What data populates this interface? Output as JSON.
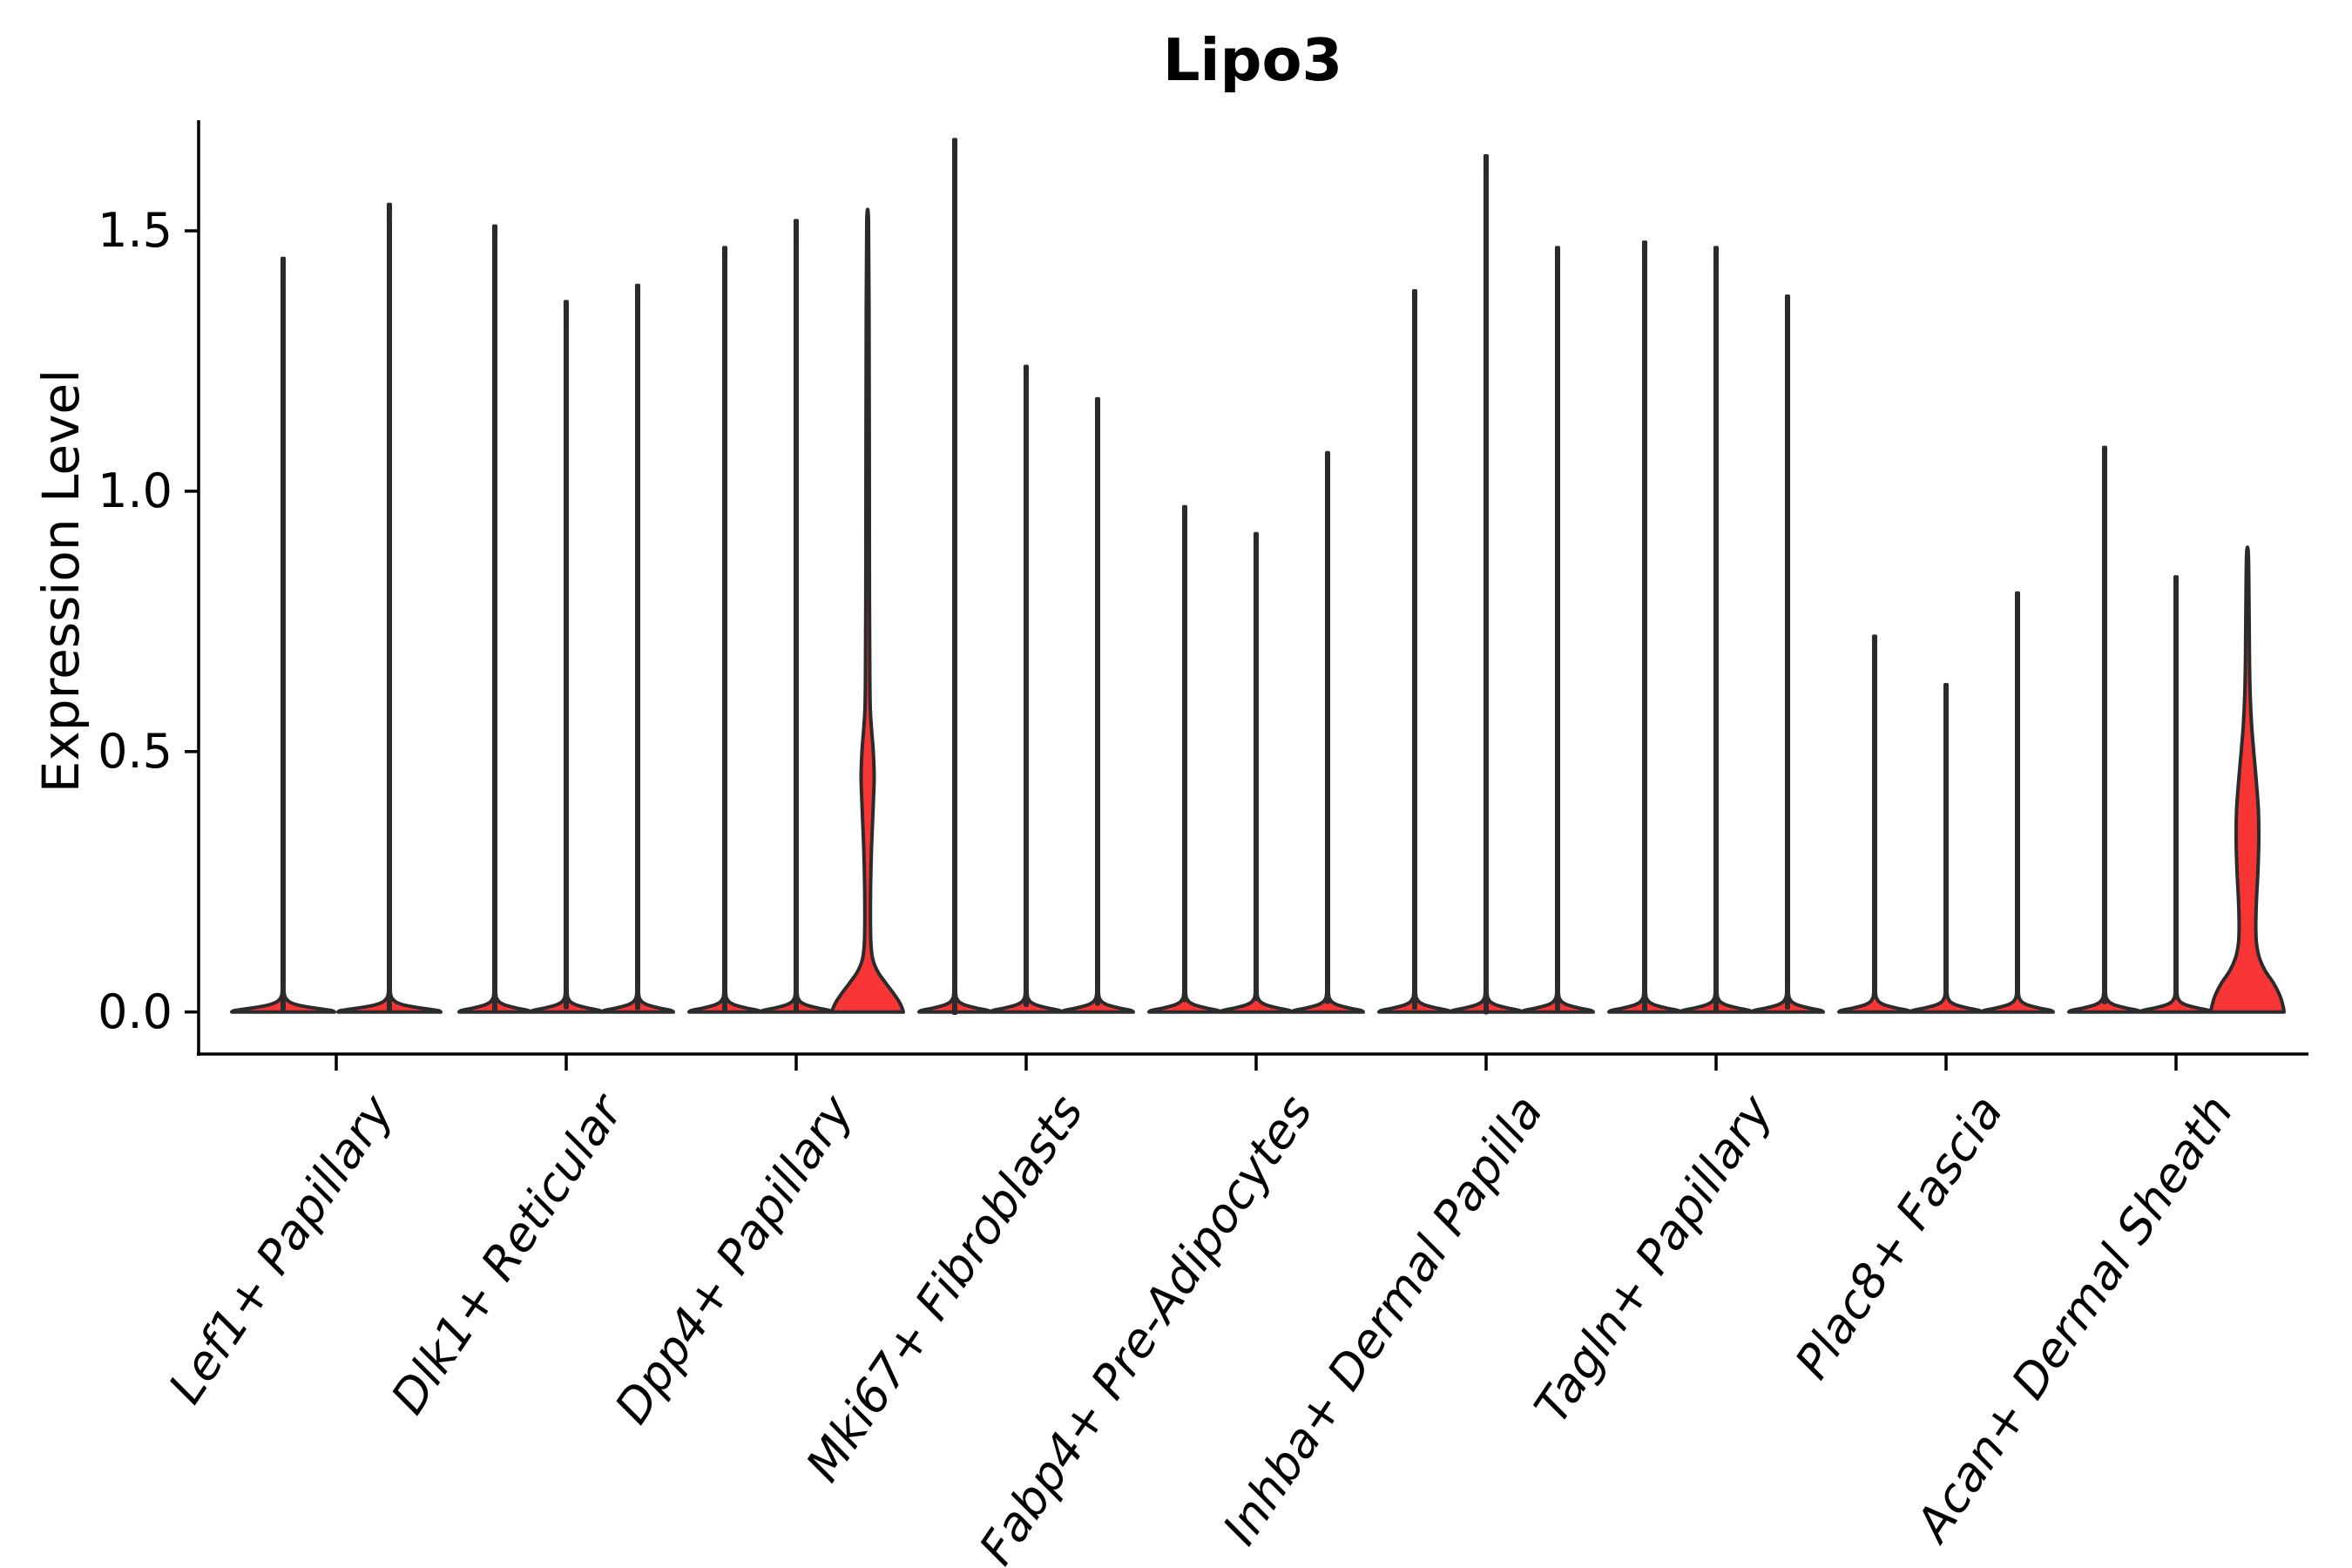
{
  "title": "Lipo3",
  "axes": {
    "ylabel": "Expression Level",
    "ytick_labels": [
      "0.0",
      "0.5",
      "1.0",
      "1.5"
    ]
  },
  "categories": [
    {
      "label": "Lef1+ Papillary"
    },
    {
      "label": "Dlk1+ Reticular"
    },
    {
      "label": "Dpp4+ Papillary"
    },
    {
      "label": "Mki67+ Fibroblasts"
    },
    {
      "label": "Fabp4+ Pre-Adipocytes"
    },
    {
      "label": "Inhba+ Dermal Papilla"
    },
    {
      "label": "Tagln+ Papillary"
    },
    {
      "label": "Plac8+ Fascia"
    },
    {
      "label": "Acan+ Dermal Sheath"
    }
  ],
  "colors": {
    "violin_fill": "#f73535",
    "violin_edge": "#2b2b2b",
    "axis": "#000000",
    "background": "#ffffff"
  },
  "chart_data": {
    "type": "violin",
    "title": "Lipo3",
    "xlabel": "",
    "ylabel": "Expression Level",
    "yticks": [
      0.0,
      0.5,
      1.0,
      1.5
    ],
    "ylim": [
      -0.09,
      1.71
    ],
    "grid": false,
    "legend": "none",
    "categories": [
      "Lef1+ Papillary",
      "Dlk1+ Reticular",
      "Dpp4+ Papillary",
      "Mki67+ Fibroblasts",
      "Fabp4+ Pre-Adipocytes",
      "Inhba+ Dermal Papilla",
      "Tagln+ Papillary",
      "Plac8+ Fascia",
      "Acan+ Dermal Sheath"
    ],
    "note": "Nearly all cells have expression 0 (flat pancake at baseline with a thin spike to the max expressed cell). Only Dpp4+ Papillary violin 3 and Acan+ Dermal Sheath violin 3 show visible red KDE mass above 0.",
    "violins": [
      {
        "category_index": 0,
        "dx": -61,
        "half_width": 59,
        "max": 1.41,
        "shape": "spike"
      },
      {
        "category_index": 0,
        "dx": 61,
        "half_width": 59,
        "max": 1.51,
        "shape": "spike"
      },
      {
        "category_index": 1,
        "dx": -82,
        "half_width": 41,
        "max": 1.47,
        "shape": "spike"
      },
      {
        "category_index": 1,
        "dx": 0,
        "half_width": 41,
        "max": 1.33,
        "shape": "spike"
      },
      {
        "category_index": 1,
        "dx": 82,
        "half_width": 41,
        "max": 1.36,
        "shape": "spike"
      },
      {
        "category_index": 2,
        "dx": -82,
        "half_width": 41,
        "max": 1.43,
        "shape": "spike"
      },
      {
        "category_index": 2,
        "dx": 0,
        "half_width": 41,
        "max": 1.48,
        "shape": "spike"
      },
      {
        "category_index": 2,
        "dx": 82,
        "half_width": 41,
        "max": 1.52,
        "shape": "bulge",
        "profile_key": "red_dpp4"
      },
      {
        "category_index": 3,
        "dx": -82,
        "half_width": 41,
        "max": 1.63,
        "shape": "spike"
      },
      {
        "category_index": 3,
        "dx": 0,
        "half_width": 41,
        "max": 1.21,
        "shape": "spike"
      },
      {
        "category_index": 3,
        "dx": 82,
        "half_width": 41,
        "max": 1.15,
        "shape": "spike"
      },
      {
        "category_index": 4,
        "dx": -82,
        "half_width": 41,
        "max": 0.95,
        "shape": "spike"
      },
      {
        "category_index": 4,
        "dx": 0,
        "half_width": 41,
        "max": 0.9,
        "shape": "spike"
      },
      {
        "category_index": 4,
        "dx": 82,
        "half_width": 41,
        "max": 1.05,
        "shape": "spike"
      },
      {
        "category_index": 5,
        "dx": -82,
        "half_width": 41,
        "max": 1.35,
        "shape": "spike"
      },
      {
        "category_index": 5,
        "dx": 0,
        "half_width": 41,
        "max": 1.6,
        "shape": "spike"
      },
      {
        "category_index": 5,
        "dx": 82,
        "half_width": 41,
        "max": 1.43,
        "shape": "spike"
      },
      {
        "category_index": 6,
        "dx": -82,
        "half_width": 41,
        "max": 1.44,
        "shape": "spike"
      },
      {
        "category_index": 6,
        "dx": 0,
        "half_width": 41,
        "max": 1.43,
        "shape": "spike"
      },
      {
        "category_index": 6,
        "dx": 82,
        "half_width": 41,
        "max": 1.34,
        "shape": "spike"
      },
      {
        "category_index": 7,
        "dx": -82,
        "half_width": 41,
        "max": 0.71,
        "shape": "spike"
      },
      {
        "category_index": 7,
        "dx": 0,
        "half_width": 41,
        "max": 0.62,
        "shape": "spike"
      },
      {
        "category_index": 7,
        "dx": 82,
        "half_width": 41,
        "max": 0.79,
        "shape": "spike"
      },
      {
        "category_index": 8,
        "dx": -82,
        "half_width": 41,
        "max": 1.06,
        "shape": "spike"
      },
      {
        "category_index": 8,
        "dx": 0,
        "half_width": 41,
        "max": 0.82,
        "shape": "spike"
      },
      {
        "category_index": 8,
        "dx": 82,
        "half_width": 41,
        "max": 0.88,
        "shape": "bulge",
        "profile_key": "red_acan"
      }
    ],
    "bulge_profiles": {
      "red_dpp4": [
        [
          0,
          41
        ],
        [
          0.008,
          39.5
        ],
        [
          0.02,
          36
        ],
        [
          0.035,
          30
        ],
        [
          0.055,
          21
        ],
        [
          0.075,
          12.5
        ],
        [
          0.095,
          7
        ],
        [
          0.115,
          4.6
        ],
        [
          0.15,
          3.4
        ],
        [
          0.22,
          3.3
        ],
        [
          0.3,
          4.2
        ],
        [
          0.37,
          5.8
        ],
        [
          0.42,
          7.0
        ],
        [
          0.455,
          7.5
        ],
        [
          0.5,
          6.5
        ],
        [
          0.545,
          4.4
        ],
        [
          0.585,
          3.0
        ],
        [
          0.65,
          2.5
        ],
        [
          0.8,
          2.1
        ],
        [
          1.1,
          1.9
        ],
        [
          1.35,
          1.6
        ],
        [
          1.52,
          1.0
        ]
      ],
      "red_acan": [
        [
          0,
          42
        ],
        [
          0.01,
          41
        ],
        [
          0.03,
          37.5
        ],
        [
          0.055,
          30
        ],
        [
          0.08,
          20
        ],
        [
          0.105,
          13.5
        ],
        [
          0.13,
          10.5
        ],
        [
          0.16,
          9.6
        ],
        [
          0.21,
          10.2
        ],
        [
          0.27,
          12
        ],
        [
          0.33,
          13
        ],
        [
          0.385,
          12.6
        ],
        [
          0.44,
          10.3
        ],
        [
          0.5,
          7.2
        ],
        [
          0.55,
          4.8
        ],
        [
          0.61,
          3.1
        ],
        [
          0.68,
          2.3
        ],
        [
          0.78,
          1.8
        ],
        [
          0.88,
          1.0
        ]
      ]
    }
  }
}
